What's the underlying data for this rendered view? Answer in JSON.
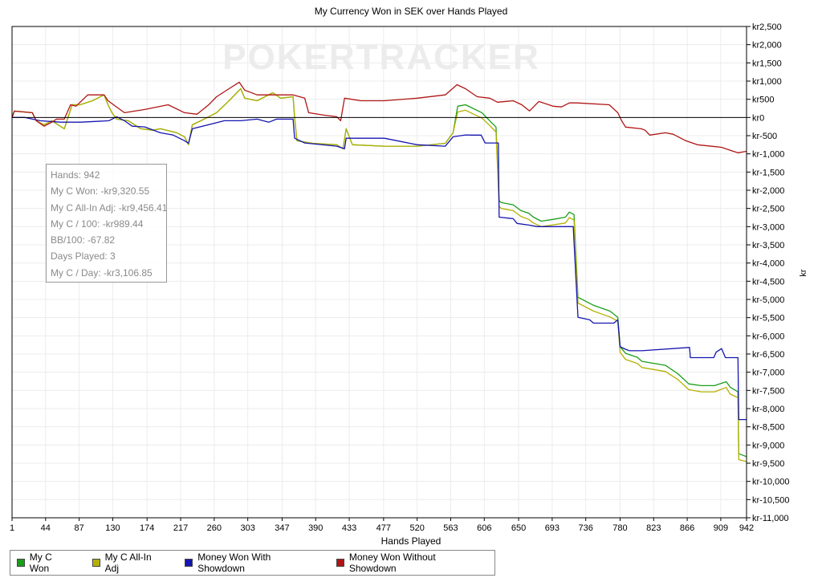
{
  "chart_data": {
    "type": "line",
    "title": "My Currency Won in SEK over Hands Played",
    "xlabel": "Hands Played",
    "ylabel": "kr",
    "xlim": [
      1,
      942
    ],
    "ylim": [
      -11000,
      2500
    ],
    "grid": true,
    "legend_placement": "bottom",
    "watermark": "POKERTRACKER",
    "x_ticks": [
      "1",
      "44",
      "87",
      "130",
      "174",
      "217",
      "260",
      "303",
      "347",
      "390",
      "433",
      "477",
      "520",
      "563",
      "606",
      "650",
      "693",
      "736",
      "780",
      "823",
      "866",
      "909",
      "942"
    ],
    "y_ticks": [
      "kr2,500",
      "kr2,000",
      "kr1,500",
      "kr1,000",
      "kr500",
      "kr0",
      "kr-500",
      "kr-1,000",
      "kr-1,500",
      "kr-2,000",
      "kr-2,500",
      "kr-3,000",
      "kr-3,500",
      "kr-4,000",
      "kr-4,500",
      "kr-5,000",
      "kr-5,500",
      "kr-6,000",
      "kr-6,500",
      "kr-7,000",
      "kr-7,500",
      "kr-8,000",
      "kr-8,500",
      "kr-9,000",
      "kr-9,500",
      "kr-10,000",
      "kr-10,500",
      "kr-11,000"
    ],
    "y_tick_values": [
      2500,
      2000,
      1500,
      1000,
      500,
      0,
      -500,
      -1000,
      -1500,
      -2000,
      -2500,
      -3000,
      -3500,
      -4000,
      -4500,
      -5000,
      -5500,
      -6000,
      -6500,
      -7000,
      -7500,
      -8000,
      -8500,
      -9000,
      -9500,
      -10000,
      -10500,
      -11000
    ],
    "series": [
      {
        "name": "My C Won",
        "color": "#1a9e1a",
        "points": [
          [
            1,
            0
          ],
          [
            4,
            175
          ],
          [
            27,
            130
          ],
          [
            32,
            -90
          ],
          [
            42,
            -200
          ],
          [
            52,
            -90
          ],
          [
            68,
            -310
          ],
          [
            78,
            350
          ],
          [
            88,
            350
          ],
          [
            104,
            460
          ],
          [
            119,
            620
          ],
          [
            124,
            350
          ],
          [
            129,
            130
          ],
          [
            135,
            -45
          ],
          [
            150,
            -90
          ],
          [
            166,
            -310
          ],
          [
            181,
            -350
          ],
          [
            191,
            -310
          ],
          [
            212,
            -420
          ],
          [
            222,
            -530
          ],
          [
            227,
            -750
          ],
          [
            232,
            -200
          ],
          [
            243,
            -90
          ],
          [
            253,
            20
          ],
          [
            263,
            130
          ],
          [
            279,
            460
          ],
          [
            294,
            790
          ],
          [
            299,
            530
          ],
          [
            315,
            460
          ],
          [
            335,
            680
          ],
          [
            345,
            530
          ],
          [
            361,
            570
          ],
          [
            363,
            0
          ],
          [
            366,
            -640
          ],
          [
            386,
            -710
          ],
          [
            417,
            -750
          ],
          [
            425,
            -860
          ],
          [
            429,
            -310
          ],
          [
            437,
            -750
          ],
          [
            478,
            -790
          ],
          [
            520,
            -790
          ],
          [
            556,
            -710
          ],
          [
            566,
            -420
          ],
          [
            572,
            310
          ],
          [
            582,
            350
          ],
          [
            603,
            130
          ],
          [
            613,
            -90
          ],
          [
            621,
            -265
          ],
          [
            625,
            -2290
          ],
          [
            628,
            -2340
          ],
          [
            643,
            -2400
          ],
          [
            653,
            -2560
          ],
          [
            663,
            -2630
          ],
          [
            669,
            -2740
          ],
          [
            679,
            -2850
          ],
          [
            694,
            -2800
          ],
          [
            710,
            -2740
          ],
          [
            715,
            -2600
          ],
          [
            721,
            -2670
          ],
          [
            726,
            -4940
          ],
          [
            746,
            -5160
          ],
          [
            767,
            -5320
          ],
          [
            777,
            -5490
          ],
          [
            780,
            -6300
          ],
          [
            787,
            -6480
          ],
          [
            802,
            -6590
          ],
          [
            808,
            -6700
          ],
          [
            838,
            -6810
          ],
          [
            854,
            -7040
          ],
          [
            868,
            -7320
          ],
          [
            884,
            -7370
          ],
          [
            901,
            -7370
          ],
          [
            916,
            -7260
          ],
          [
            921,
            -7410
          ],
          [
            931,
            -7540
          ],
          [
            932,
            -9240
          ],
          [
            942,
            -9320
          ]
        ]
      },
      {
        "name": "My C All-In Adj",
        "color": "#b5b000",
        "points": [
          [
            1,
            0
          ],
          [
            4,
            175
          ],
          [
            27,
            130
          ],
          [
            32,
            -90
          ],
          [
            42,
            -200
          ],
          [
            52,
            -90
          ],
          [
            68,
            -310
          ],
          [
            78,
            350
          ],
          [
            88,
            350
          ],
          [
            104,
            460
          ],
          [
            119,
            620
          ],
          [
            124,
            350
          ],
          [
            129,
            130
          ],
          [
            135,
            -45
          ],
          [
            150,
            -90
          ],
          [
            166,
            -310
          ],
          [
            181,
            -350
          ],
          [
            191,
            -310
          ],
          [
            212,
            -420
          ],
          [
            222,
            -530
          ],
          [
            227,
            -750
          ],
          [
            232,
            -200
          ],
          [
            243,
            -90
          ],
          [
            253,
            20
          ],
          [
            263,
            130
          ],
          [
            279,
            460
          ],
          [
            294,
            790
          ],
          [
            299,
            530
          ],
          [
            315,
            460
          ],
          [
            335,
            680
          ],
          [
            345,
            530
          ],
          [
            361,
            570
          ],
          [
            363,
            0
          ],
          [
            366,
            -640
          ],
          [
            386,
            -710
          ],
          [
            417,
            -750
          ],
          [
            425,
            -860
          ],
          [
            429,
            -310
          ],
          [
            437,
            -750
          ],
          [
            478,
            -790
          ],
          [
            520,
            -790
          ],
          [
            556,
            -710
          ],
          [
            566,
            -420
          ],
          [
            572,
            150
          ],
          [
            582,
            200
          ],
          [
            603,
            -20
          ],
          [
            613,
            -220
          ],
          [
            621,
            -400
          ],
          [
            625,
            -2450
          ],
          [
            628,
            -2500
          ],
          [
            643,
            -2560
          ],
          [
            653,
            -2720
          ],
          [
            663,
            -2800
          ],
          [
            669,
            -2900
          ],
          [
            679,
            -3000
          ],
          [
            694,
            -2950
          ],
          [
            710,
            -2900
          ],
          [
            715,
            -2750
          ],
          [
            721,
            -2820
          ],
          [
            726,
            -5100
          ],
          [
            746,
            -5320
          ],
          [
            767,
            -5480
          ],
          [
            777,
            -5600
          ],
          [
            780,
            -6450
          ],
          [
            787,
            -6650
          ],
          [
            802,
            -6760
          ],
          [
            808,
            -6870
          ],
          [
            838,
            -6980
          ],
          [
            854,
            -7200
          ],
          [
            868,
            -7480
          ],
          [
            884,
            -7540
          ],
          [
            901,
            -7540
          ],
          [
            916,
            -7420
          ],
          [
            921,
            -7600
          ],
          [
            931,
            -7700
          ],
          [
            932,
            -9400
          ],
          [
            942,
            -9456
          ]
        ]
      },
      {
        "name": "Money Won With Showdown",
        "color": "#1515b0",
        "points": [
          [
            1,
            0
          ],
          [
            17,
            0
          ],
          [
            37,
            -90
          ],
          [
            63,
            -130
          ],
          [
            89,
            -130
          ],
          [
            125,
            -90
          ],
          [
            135,
            20
          ],
          [
            145,
            -90
          ],
          [
            155,
            -240
          ],
          [
            171,
            -260
          ],
          [
            191,
            -420
          ],
          [
            207,
            -480
          ],
          [
            222,
            -640
          ],
          [
            227,
            -710
          ],
          [
            232,
            -310
          ],
          [
            273,
            -90
          ],
          [
            294,
            -90
          ],
          [
            315,
            -45
          ],
          [
            330,
            -130
          ],
          [
            340,
            -45
          ],
          [
            361,
            -45
          ],
          [
            363,
            -570
          ],
          [
            376,
            -700
          ],
          [
            417,
            -790
          ],
          [
            427,
            -860
          ],
          [
            429,
            -570
          ],
          [
            478,
            -570
          ],
          [
            520,
            -750
          ],
          [
            556,
            -790
          ],
          [
            566,
            -530
          ],
          [
            582,
            -480
          ],
          [
            590,
            -485
          ],
          [
            602,
            -485
          ],
          [
            607,
            -700
          ],
          [
            624,
            -700
          ],
          [
            625,
            -2740
          ],
          [
            643,
            -2780
          ],
          [
            648,
            -2910
          ],
          [
            664,
            -2960
          ],
          [
            674,
            -3000
          ],
          [
            705,
            -3000
          ],
          [
            720,
            -3000
          ],
          [
            726,
            -5490
          ],
          [
            741,
            -5560
          ],
          [
            746,
            -5650
          ],
          [
            772,
            -5650
          ],
          [
            777,
            -5560
          ],
          [
            780,
            -6300
          ],
          [
            787,
            -6370
          ],
          [
            792,
            -6410
          ],
          [
            808,
            -6410
          ],
          [
            869,
            -6320
          ],
          [
            870,
            -6600
          ],
          [
            900,
            -6600
          ],
          [
            903,
            -6450
          ],
          [
            910,
            -6350
          ],
          [
            915,
            -6600
          ],
          [
            931,
            -6600
          ],
          [
            932,
            -8300
          ],
          [
            942,
            -8300
          ]
        ]
      },
      {
        "name": "Money Won Without Showdown",
        "color": "#b01515",
        "points": [
          [
            1,
            0
          ],
          [
            4,
            175
          ],
          [
            27,
            130
          ],
          [
            32,
            -90
          ],
          [
            42,
            -240
          ],
          [
            52,
            -130
          ],
          [
            58,
            -45
          ],
          [
            68,
            -45
          ],
          [
            76,
            350
          ],
          [
            83,
            310
          ],
          [
            98,
            620
          ],
          [
            119,
            620
          ],
          [
            124,
            460
          ],
          [
            145,
            130
          ],
          [
            171,
            220
          ],
          [
            201,
            350
          ],
          [
            222,
            130
          ],
          [
            238,
            90
          ],
          [
            253,
            350
          ],
          [
            263,
            570
          ],
          [
            279,
            790
          ],
          [
            292,
            970
          ],
          [
            299,
            750
          ],
          [
            315,
            620
          ],
          [
            345,
            620
          ],
          [
            361,
            620
          ],
          [
            376,
            530
          ],
          [
            381,
            130
          ],
          [
            402,
            60
          ],
          [
            417,
            20
          ],
          [
            422,
            -90
          ],
          [
            427,
            530
          ],
          [
            448,
            460
          ],
          [
            478,
            460
          ],
          [
            520,
            530
          ],
          [
            556,
            620
          ],
          [
            571,
            900
          ],
          [
            582,
            790
          ],
          [
            597,
            570
          ],
          [
            613,
            530
          ],
          [
            623,
            420
          ],
          [
            643,
            460
          ],
          [
            654,
            350
          ],
          [
            664,
            180
          ],
          [
            676,
            440
          ],
          [
            694,
            310
          ],
          [
            705,
            290
          ],
          [
            715,
            400
          ],
          [
            725,
            400
          ],
          [
            766,
            350
          ],
          [
            777,
            130
          ],
          [
            782,
            -90
          ],
          [
            787,
            -265
          ],
          [
            807,
            -310
          ],
          [
            812,
            -350
          ],
          [
            818,
            -485
          ],
          [
            838,
            -420
          ],
          [
            848,
            -460
          ],
          [
            864,
            -640
          ],
          [
            879,
            -750
          ],
          [
            910,
            -820
          ],
          [
            925,
            -930
          ],
          [
            931,
            -970
          ],
          [
            942,
            -930
          ]
        ]
      }
    ],
    "stats": [
      "Hands: 942",
      "My C Won: -kr9,320.55",
      "My C All-In Adj: -kr9,456.41",
      "My C / 100: -kr989.44",
      "BB/100: -67.82",
      "Days Played: 3",
      "My C / Day: -kr3,106.85"
    ]
  }
}
